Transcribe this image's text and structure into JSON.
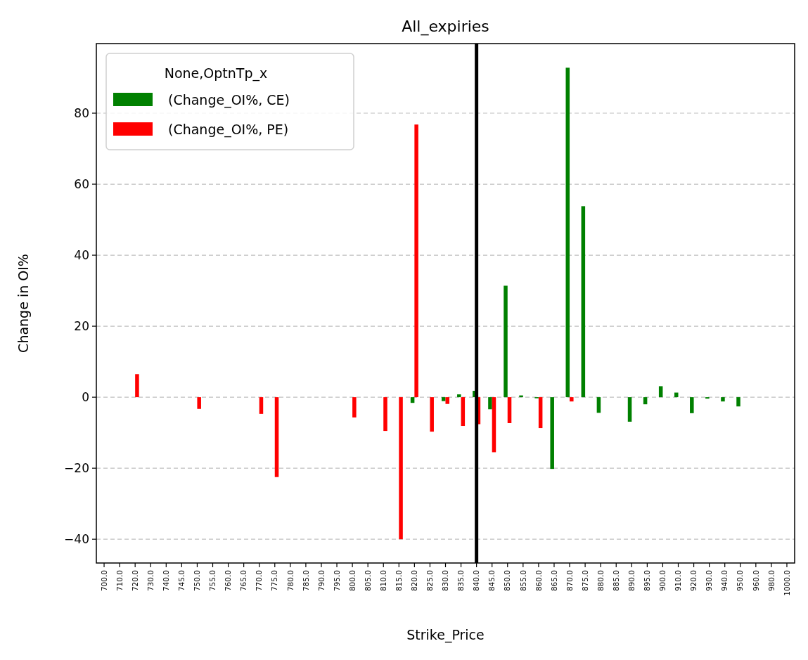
{
  "chart_data": {
    "type": "bar",
    "title": "All_expiries",
    "xlabel": "Strike_Price",
    "ylabel": "Change in OI%",
    "legend_title": "None,OptnTp_x",
    "categories": [
      "700.0",
      "710.0",
      "720.0",
      "730.0",
      "740.0",
      "745.0",
      "750.0",
      "755.0",
      "760.0",
      "765.0",
      "770.0",
      "775.0",
      "780.0",
      "785.0",
      "790.0",
      "795.0",
      "800.0",
      "805.0",
      "810.0",
      "815.0",
      "820.0",
      "825.0",
      "830.0",
      "835.0",
      "840.0",
      "845.0",
      "850.0",
      "855.0",
      "860.0",
      "865.0",
      "870.0",
      "875.0",
      "880.0",
      "885.0",
      "890.0",
      "895.0",
      "900.0",
      "910.0",
      "920.0",
      "930.0",
      "940.0",
      "950.0",
      "960.0",
      "980.0",
      "1000.0"
    ],
    "series": [
      {
        "name": "(Change_OI%, CE)",
        "color": "#008000",
        "values": [
          null,
          null,
          null,
          null,
          null,
          null,
          null,
          null,
          null,
          null,
          null,
          null,
          null,
          null,
          null,
          null,
          null,
          null,
          null,
          null,
          -1.6,
          null,
          -1.1,
          0.8,
          1.8,
          -3.4,
          31.4,
          0.5,
          -0.3,
          -20.2,
          92.8,
          53.8,
          -4.4,
          null,
          -6.9,
          -2.0,
          3.1,
          1.3,
          -4.5,
          -0.4,
          -1.2,
          -2.6,
          null,
          null,
          null
        ]
      },
      {
        "name": "(Change_OI%, PE)",
        "color": "#ff0000",
        "values": [
          null,
          null,
          6.5,
          null,
          null,
          null,
          -3.3,
          null,
          null,
          null,
          -4.7,
          -22.5,
          null,
          null,
          null,
          null,
          -5.7,
          null,
          -9.5,
          -40,
          76.8,
          -9.7,
          -1.9,
          -8.1,
          -7.6,
          -15.5,
          -7.3,
          null,
          -8.7,
          null,
          -1.2,
          null,
          null,
          null,
          null,
          null,
          null,
          null,
          null,
          null,
          null,
          null,
          null,
          null,
          null
        ]
      }
    ],
    "ylim": [
      -46.7,
      99.6
    ],
    "yticks": [
      {
        "value": -40,
        "label": "−40"
      },
      {
        "value": -20,
        "label": "−20"
      },
      0,
      20,
      40,
      60,
      80
    ],
    "grid": "y",
    "legend": "top left",
    "ref_lines": [
      {
        "axis": "x",
        "value": "840.0",
        "color": "#000000"
      }
    ]
  }
}
